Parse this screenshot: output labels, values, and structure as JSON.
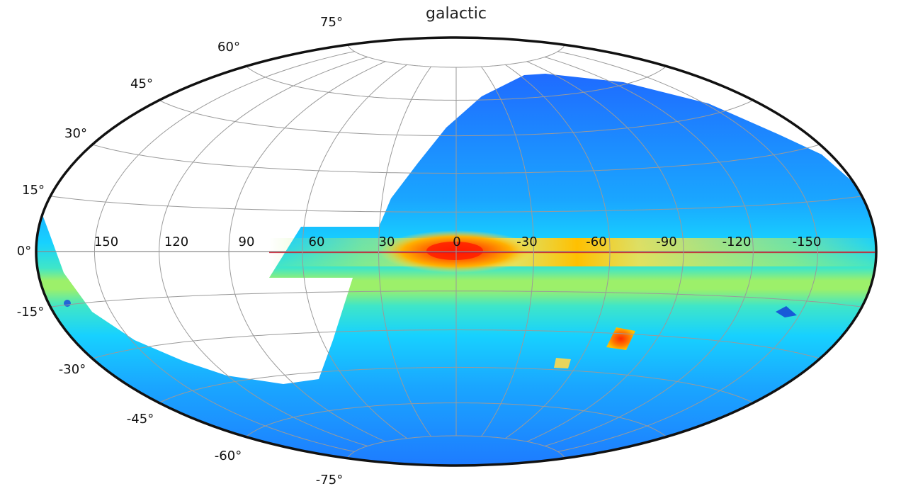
{
  "figure": {
    "title": "galactic",
    "projection": "hammer-aitoff (equal-area)",
    "colormap": "jet",
    "background_uncovered": "#ffffff"
  },
  "longitude_labels": [
    "150",
    "120",
    "90",
    "60",
    "30",
    "0",
    "-30",
    "-60",
    "-90",
    "-120",
    "-150"
  ],
  "latitude_labels_left": [
    "75°",
    "60°",
    "45°",
    "30°",
    "15°",
    "0°",
    "-15°",
    "-30°",
    "-45°",
    "-60°",
    "-75°"
  ],
  "grid": {
    "meridian_step_deg": 30,
    "parallel_step_deg": 15,
    "shown": true
  },
  "features": {
    "galactic_plane": "bright red/yellow band along latitude 0°, peaking at the galactic center (longitude 0)",
    "magellanic_clouds": [
      "large cloud near (l=-80°, b=-33°)",
      "small cloud near (l=-57°, b=-44°)"
    ],
    "coverage": "no data in a region covering most of the northern part of positive longitudes"
  },
  "colors": {
    "low": "#1f6bff",
    "mid_low": "#17c8ff",
    "mid": "#8ff06a",
    "high": "#ffd000",
    "peak": "#ff2a00",
    "border": "#111111",
    "grid": "#9a9a9a"
  }
}
